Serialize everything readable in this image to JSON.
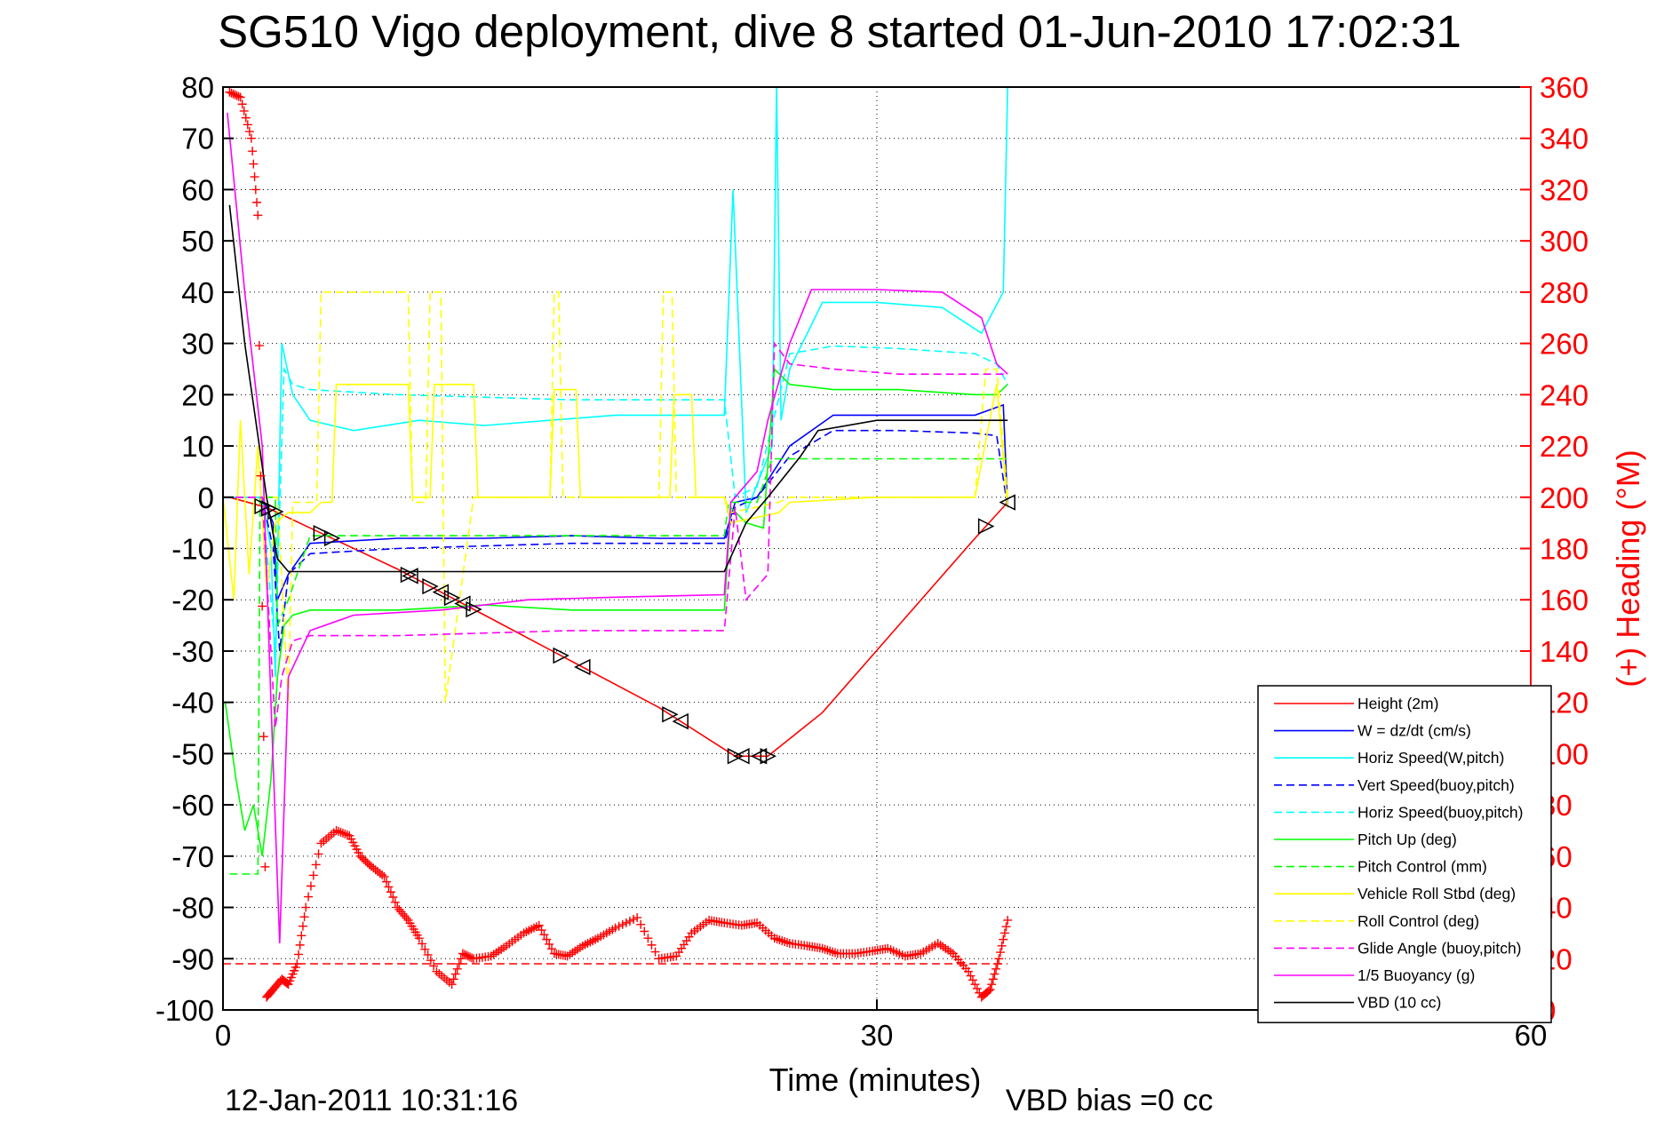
{
  "chart_data": {
    "type": "line",
    "title": "SG510 Vigo deployment, dive 8 started 01-Jun-2010 17:02:31",
    "xlabel": "Time (minutes)",
    "ylabel_right": "(+) Heading (°M)",
    "xlim": [
      0,
      60
    ],
    "ylim": [
      -100,
      80
    ],
    "ylim_right": [
      0,
      360
    ],
    "x_ticks": [
      "0",
      "30",
      "60"
    ],
    "y_ticks": [
      "80",
      "70",
      "60",
      "50",
      "40",
      "30",
      "20",
      "10",
      "0",
      "-10",
      "-20",
      "-30",
      "-40",
      "-50",
      "-60",
      "-70",
      "-80",
      "-90",
      "-100"
    ],
    "y_right_ticks": [
      "360",
      "340",
      "320",
      "300",
      "280",
      "260",
      "240",
      "220",
      "200",
      "180",
      "160",
      "140",
      "120",
      "100",
      "80",
      "60",
      "40",
      "20",
      "0"
    ],
    "grid": true,
    "legend_position": "bottom-right",
    "footer_left": "12-Jan-2011 10:31:16",
    "footer_right": "VBD bias =0 cc",
    "colors": {
      "red": "#ff0000",
      "blue": "#0000ff",
      "cyan": "#00ffff",
      "green": "#00ff00",
      "yellow": "#ffff00",
      "magenta": "#ff00ff",
      "black": "#000000"
    },
    "series": [
      {
        "name": "Height (2m)",
        "color": "#ff0000",
        "dash": false,
        "x": [
          0.3,
          2.0,
          4.5,
          8,
          12,
          16,
          20,
          23.5,
          25.0,
          27.5,
          31,
          34.5,
          36.0
        ],
        "y": [
          0,
          -2,
          -7,
          -14,
          -23,
          -32,
          -41,
          -50.5,
          -50.5,
          -42,
          -25,
          -8,
          -1
        ]
      },
      {
        "name": "W = dz/dt (cm/s)",
        "color": "#0000ff",
        "dash": false,
        "x": [
          0,
          1.8,
          2.3,
          2.5,
          3.0,
          4.0,
          8,
          12,
          16,
          20,
          23.0,
          23.5,
          24.5,
          26,
          28,
          31,
          34.5,
          35.8,
          36.0
        ],
        "y": [
          0,
          0,
          -5,
          -20,
          -15,
          -9,
          -8,
          -8,
          -7.5,
          -8,
          -8,
          -1,
          0,
          10,
          16,
          16,
          16,
          18,
          -2
        ]
      },
      {
        "name": "Horiz Speed(W,pitch)",
        "color": "#00ffff",
        "dash": false,
        "x": [
          0,
          1.8,
          2.2,
          2.4,
          2.7,
          3.2,
          4.0,
          6,
          9,
          12,
          15,
          18,
          21,
          23.0,
          23.4,
          24.0,
          25.2,
          25.4,
          25.6,
          26,
          27.5,
          30,
          33,
          34.8,
          35.8,
          36.0
        ],
        "y": [
          0,
          0,
          -10,
          -35,
          30,
          20,
          15,
          13,
          15,
          14,
          15,
          16,
          16,
          16,
          60,
          -3,
          10,
          80,
          15,
          25,
          38,
          38,
          37,
          32,
          40,
          80
        ]
      },
      {
        "name": "Vert Speed(buoy,pitch)",
        "color": "#0000ff",
        "dash": true,
        "x": [
          0,
          1.8,
          2.3,
          2.6,
          3.0,
          4.0,
          8,
          12,
          16,
          20,
          23.0,
          23.5,
          24.5,
          26,
          28,
          31,
          34.5,
          35.5,
          36.0
        ],
        "y": [
          0,
          0,
          -10,
          -30,
          -15,
          -11,
          -10,
          -9.5,
          -9,
          -9,
          -9,
          -2,
          0,
          8,
          13,
          13,
          12.5,
          12,
          -2
        ]
      },
      {
        "name": "Horiz Speed(buoy,pitch)",
        "color": "#00ffff",
        "dash": true,
        "x": [
          0,
          1.8,
          2.4,
          2.8,
          3.2,
          4.0,
          8,
          12,
          16,
          20,
          23.0,
          23.5,
          24.5,
          26,
          28,
          31,
          34.5,
          35.5,
          36.0
        ],
        "y": [
          0,
          0,
          -30,
          25,
          22,
          21,
          20,
          19.5,
          19,
          19,
          19,
          0,
          2,
          28,
          29.5,
          29,
          28,
          26,
          22
        ]
      },
      {
        "name": "Pitch Up (deg)",
        "color": "#00ff00",
        "dash": false,
        "x": [
          0.1,
          0.6,
          1.0,
          1.4,
          1.8,
          2.2,
          2.5,
          2.8,
          3.2,
          4.0,
          8,
          12,
          16,
          20,
          23.0,
          23.3,
          24.0,
          24.8,
          25.3,
          26,
          28,
          31,
          34.5,
          35.5,
          36.0
        ],
        "y": [
          -40,
          -55,
          -65,
          -60,
          -70,
          -55,
          -35,
          -25,
          -23,
          -22,
          -22,
          -21,
          -22,
          -22,
          -22,
          -2,
          -5,
          -6,
          25,
          22,
          21,
          21,
          20,
          20,
          22
        ]
      },
      {
        "name": "Pitch Control (mm)",
        "color": "#00ff00",
        "dash": true,
        "x": [
          0.3,
          1.6,
          1.7,
          2.4,
          2.5,
          3.0,
          4.0,
          8,
          12,
          16,
          20,
          23.0,
          23.2,
          24.5,
          25.2,
          26,
          28,
          31,
          34.5,
          35.5,
          36.0
        ],
        "y": [
          -73.5,
          -73.5,
          0,
          0,
          -25,
          -20,
          -7.5,
          -7.5,
          -7.5,
          -7.5,
          -7.5,
          -7.5,
          -1,
          -1,
          7.5,
          7.5,
          7.5,
          7.5,
          7.5,
          7.5,
          7.5
        ]
      },
      {
        "name": "Vehicle Roll Stbd (deg)",
        "color": "#ffff00",
        "dash": false,
        "x": [
          0,
          0.5,
          0.8,
          1.2,
          1.6,
          2.0,
          2.4,
          3.0,
          4.0,
          4.5,
          5.0,
          5.2,
          8.5,
          8.7,
          9.5,
          9.7,
          11.5,
          11.7,
          15,
          15.2,
          16.2,
          16.4,
          20.5,
          20.7,
          21.5,
          21.7,
          23.0,
          23.3,
          25.5,
          26,
          30,
          34.5,
          35.5,
          36.0
        ],
        "y": [
          0,
          -20,
          15,
          -15,
          10,
          -18,
          -5,
          -3,
          -3,
          -1,
          -1,
          22,
          22,
          0,
          0,
          22,
          22,
          0,
          0,
          21,
          21,
          0,
          0,
          20,
          20,
          0,
          0,
          -5,
          -3,
          -1,
          0,
          0,
          22,
          -2
        ]
      },
      {
        "name": "Roll Control (deg)",
        "color": "#ffff00",
        "dash": true,
        "x": [
          0,
          2.5,
          3.0,
          3.2,
          4.3,
          4.5,
          8.5,
          8.7,
          9.3,
          9.5,
          10.0,
          10.2,
          11.5,
          11.7,
          15,
          15.2,
          15.4,
          15.6,
          20,
          20.2,
          20.6,
          20.8,
          23.0,
          23.3,
          25.5,
          26,
          30,
          34.5,
          35.0,
          35.5,
          36.0
        ],
        "y": [
          0,
          0,
          -40,
          -1,
          -1,
          40,
          40,
          -1,
          -1,
          40,
          40,
          -40,
          0,
          0,
          0,
          40,
          40,
          0,
          0,
          40,
          40,
          0,
          0,
          -3,
          -1,
          0,
          0,
          0,
          25,
          25,
          0
        ]
      },
      {
        "name": "Glide Angle (buoy,pitch)",
        "color": "#ff00ff",
        "dash": true,
        "x": [
          0,
          1.8,
          2.4,
          2.7,
          3.2,
          4.0,
          8,
          12,
          16,
          20,
          23.0,
          23.5,
          24.0,
          25.0,
          25.3,
          26,
          28,
          31,
          34.5,
          35.5,
          36.0
        ],
        "y": [
          0,
          0,
          -45,
          -35,
          -28,
          -27,
          -27,
          -26.5,
          -26,
          -26,
          -26,
          -2,
          -20,
          -15,
          30,
          26,
          25,
          24,
          24,
          24,
          24
        ]
      },
      {
        "name": "1/5 Buoyancy (g)",
        "color": "#ff00ff",
        "dash": false,
        "x": [
          0.2,
          1.0,
          1.8,
          2.2,
          2.6,
          3.0,
          4.0,
          6,
          10,
          14,
          18,
          23.0,
          23.3,
          24.5,
          25.0,
          26.0,
          27.0,
          30,
          33,
          34.8,
          35.5,
          36.0
        ],
        "y": [
          75,
          40,
          10,
          -40,
          -87,
          -35,
          -26,
          -23,
          -22,
          -20,
          -19.5,
          -19,
          -1,
          5,
          15,
          30,
          40.5,
          40.5,
          40,
          35,
          26,
          24
        ]
      },
      {
        "name": "VBD (10 cc)",
        "color": "#000000",
        "dash": false,
        "x": [
          0.3,
          1.0,
          2.0,
          2.5,
          3.0,
          8,
          12,
          16,
          20,
          23.0,
          24.0,
          25.0,
          26.5,
          27.3,
          30,
          34,
          36.0
        ],
        "y": [
          57,
          30,
          0,
          -12,
          -14.5,
          -14.5,
          -14.5,
          -14.5,
          -14.5,
          -14.5,
          -5,
          0,
          8,
          13,
          15,
          15,
          15
        ]
      }
    ],
    "depth_markers": {
      "down": [
        1.8,
        2.1,
        2.4,
        4.5,
        5.0,
        8.5,
        9.5,
        10.5,
        11.5,
        15.5,
        20.5,
        23.5,
        25.0,
        35.0
      ],
      "up": [
        8.6,
        10.0,
        11.0,
        16.5,
        21.0,
        23.8,
        24.6,
        36.0
      ]
    },
    "heading_series": {
      "name": "Heading",
      "color": "#ff0000",
      "marker": "+",
      "mean_line": 18,
      "x": [
        0.3,
        0.8,
        1.3,
        1.6,
        2.0,
        2.3,
        2.7,
        3.0,
        3.4,
        3.8,
        4.5,
        5.2,
        5.8,
        6.3,
        6.8,
        7.4,
        8.0,
        8.5,
        9.0,
        9.8,
        10.5,
        11.0,
        11.5,
        12.3,
        13.0,
        13.8,
        14.5,
        15.2,
        15.8,
        16.5,
        17.2,
        18.0,
        19.0,
        20.0,
        20.8,
        21.5,
        22.3,
        23.0,
        23.8,
        24.5,
        25.3,
        26.0,
        26.8,
        27.5,
        28.2,
        29.0,
        29.8,
        30.5,
        31.3,
        32.0,
        32.8,
        33.5,
        34.2,
        34.8,
        35.2,
        35.6,
        36.0
      ],
      "y": [
        358,
        356,
        340,
        310,
        5,
        8,
        12,
        10,
        18,
        40,
        65,
        70,
        68,
        60,
        56,
        52,
        40,
        35,
        28,
        15,
        10,
        22,
        20,
        21,
        25,
        30,
        33,
        22,
        21,
        25,
        28,
        32,
        36,
        20,
        21,
        30,
        35,
        34,
        33,
        34,
        28,
        26,
        25,
        24,
        22,
        22,
        23,
        24,
        21,
        22,
        26,
        22,
        15,
        5,
        8,
        20,
        35
      ]
    }
  }
}
